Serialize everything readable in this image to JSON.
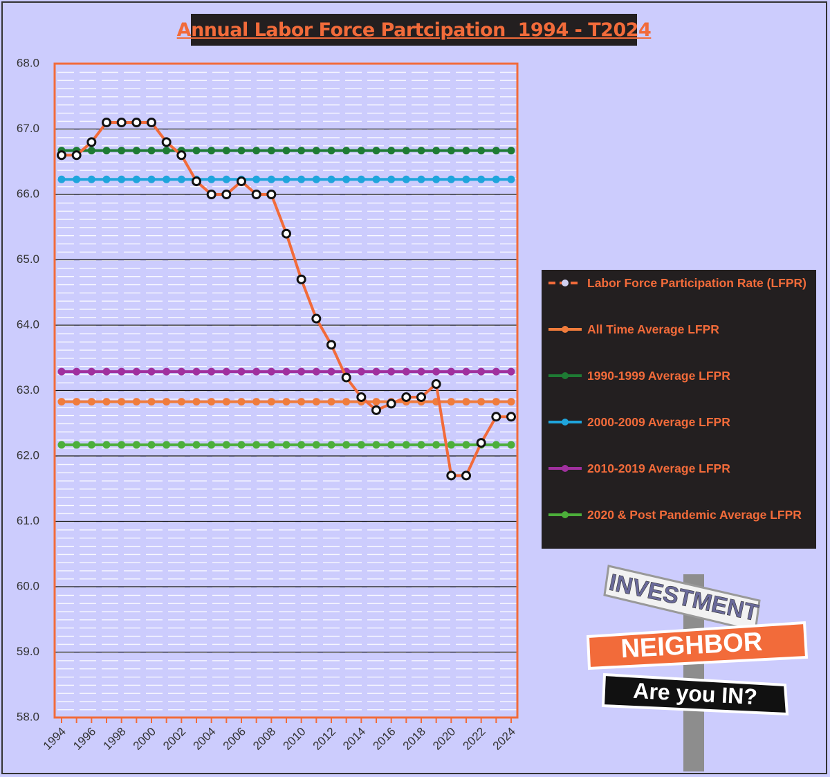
{
  "chart_data": {
    "type": "line",
    "title": "Annual Labor Force Partcipation  1994 - T2024",
    "categories": [
      "1994",
      null,
      "1996",
      null,
      "1998",
      null,
      "2000",
      null,
      "2002",
      null,
      "2004",
      null,
      "2006",
      null,
      "2008",
      null,
      "2010",
      null,
      "2012",
      null,
      "2014",
      null,
      "2016",
      null,
      "2018",
      null,
      "2020",
      null,
      "2022",
      null,
      "2024"
    ],
    "series": [
      {
        "name": "Labor Force Participation Rate (LFPR)",
        "color": "#f26b3a",
        "dashed": true,
        "values": [
          66.6,
          66.6,
          66.8,
          67.1,
          67.1,
          67.1,
          67.1,
          66.8,
          66.6,
          66.2,
          66.0,
          66.0,
          66.2,
          66.0,
          66.0,
          65.4,
          64.7,
          64.1,
          63.7,
          63.2,
          62.9,
          62.7,
          62.8,
          62.9,
          62.9,
          63.1,
          61.7,
          61.7,
          62.2,
          62.6,
          62.6
        ]
      },
      {
        "name": "All Time Average LFPR",
        "color": "#f07c3c",
        "values": [
          62.83,
          62.83,
          62.83,
          62.83,
          62.83,
          62.83,
          62.83,
          62.83,
          62.83,
          62.83,
          62.83,
          62.83,
          62.83,
          62.83,
          62.83,
          62.83,
          62.83,
          62.83,
          62.83,
          62.83,
          62.83,
          62.83,
          62.83,
          62.83,
          62.83,
          62.83,
          62.83,
          62.83,
          62.83,
          62.83,
          62.83
        ]
      },
      {
        "name": "1990-1999 Average LFPR",
        "color": "#1e7b34",
        "values": [
          66.67,
          66.67,
          66.67,
          66.67,
          66.67,
          66.67,
          66.67,
          66.67,
          66.67,
          66.67,
          66.67,
          66.67,
          66.67,
          66.67,
          66.67,
          66.67,
          66.67,
          66.67,
          66.67,
          66.67,
          66.67,
          66.67,
          66.67,
          66.67,
          66.67,
          66.67,
          66.67,
          66.67,
          66.67,
          66.67,
          66.67
        ]
      },
      {
        "name": "2000-2009 Average LFPR",
        "color": "#1fa5dc",
        "values": [
          66.23,
          66.23,
          66.23,
          66.23,
          66.23,
          66.23,
          66.23,
          66.23,
          66.23,
          66.23,
          66.23,
          66.23,
          66.23,
          66.23,
          66.23,
          66.23,
          66.23,
          66.23,
          66.23,
          66.23,
          66.23,
          66.23,
          66.23,
          66.23,
          66.23,
          66.23,
          66.23,
          66.23,
          66.23,
          66.23,
          66.23
        ]
      },
      {
        "name": "2010-2019 Average LFPR",
        "color": "#a0309e",
        "values": [
          63.29,
          63.29,
          63.29,
          63.29,
          63.29,
          63.29,
          63.29,
          63.29,
          63.29,
          63.29,
          63.29,
          63.29,
          63.29,
          63.29,
          63.29,
          63.29,
          63.29,
          63.29,
          63.29,
          63.29,
          63.29,
          63.29,
          63.29,
          63.29,
          63.29,
          63.29,
          63.29,
          63.29,
          63.29,
          63.29,
          63.29
        ]
      },
      {
        "name": "2020 & Post Pandemic Average LFPR",
        "color": "#4caf3a",
        "values": [
          62.17,
          62.17,
          62.17,
          62.17,
          62.17,
          62.17,
          62.17,
          62.17,
          62.17,
          62.17,
          62.17,
          62.17,
          62.17,
          62.17,
          62.17,
          62.17,
          62.17,
          62.17,
          62.17,
          62.17,
          62.17,
          62.17,
          62.17,
          62.17,
          62.17,
          62.17,
          62.17,
          62.17,
          62.17,
          62.17,
          62.17
        ]
      }
    ],
    "ylim": [
      58,
      68
    ],
    "yticks": [
      {
        "value": 58,
        "label": "58.0"
      },
      {
        "value": 59,
        "label": "59.0"
      },
      {
        "value": 60,
        "label": "60.0"
      },
      {
        "value": 61,
        "label": "61.0"
      },
      {
        "value": 62,
        "label": "62.0"
      },
      {
        "value": 63,
        "label": "63.0"
      },
      {
        "value": 64,
        "label": "64.0"
      },
      {
        "value": 65,
        "label": "65.0"
      },
      {
        "value": 66,
        "label": "66.0"
      },
      {
        "value": 67,
        "label": "67.0"
      },
      {
        "value": 68,
        "label": "68.0"
      }
    ],
    "grid": true
  },
  "watermark": [
    "INVESTMENT",
    "NEIGHBOR",
    "Are you IN?"
  ]
}
